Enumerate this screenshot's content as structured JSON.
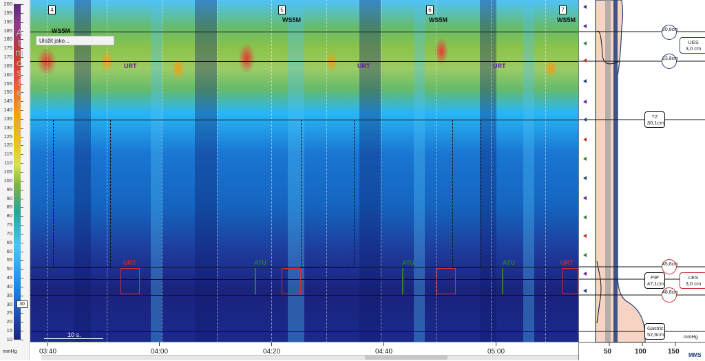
{
  "scale": {
    "unit": "mmHg",
    "ticks": [
      "200",
      "195",
      "190",
      "185",
      "180",
      "175",
      "170",
      "165",
      "160",
      "155",
      "150",
      "145",
      "140",
      "135",
      "130",
      "125",
      "120",
      "115",
      "110",
      "105",
      "100",
      "95",
      "90",
      "85",
      "80",
      "75",
      "70",
      "65",
      "60",
      "55",
      "50",
      "45",
      "40",
      "35",
      "30",
      "25",
      "20",
      "15",
      "10"
    ],
    "atmosphere_letters": [
      "A",
      "t",
      "m",
      "o",
      "s",
      "f",
      "é",
      "r",
      "i",
      "c",
      "k",
      "ý"
    ],
    "marker_value": "30"
  },
  "toolbar": {
    "save_label": "Uložit jako..."
  },
  "heatmap": {
    "ws_labels": [
      "WS5M",
      "WS5M",
      "WS5M",
      "WS5M"
    ],
    "event_markers": [
      "4",
      "5",
      "6",
      "7"
    ],
    "swallow_tags": [
      "URT",
      "URT",
      "URT",
      "URT",
      "ATU",
      "ATU",
      "ATU",
      "URT"
    ],
    "scale_label": "10 s."
  },
  "xaxis": {
    "labels": [
      "03:40",
      "04:00",
      "04:20",
      "04:40",
      "05:00"
    ]
  },
  "right_panel": {
    "ues_top": "20,8cm",
    "ues_bottom": "23,8cm",
    "ues_label": "UES",
    "ues_len": "3,0 cm",
    "tz_label": "TZ",
    "tz_val": "30,1cm",
    "les_top": "45,8cm",
    "pip_label": "PIP",
    "pip_val": "47,1cm",
    "les_label": "LES",
    "les_len": "3,0 cm",
    "les_bottom": "48,8cm",
    "gastric_label": "Gastric",
    "gastric_val": "52,6cm",
    "x_labels": [
      "50",
      "100",
      "150"
    ],
    "unit": "mmHg",
    "logo": "MMS"
  },
  "colors": {
    "ues_circle": "#2a3a8c",
    "les_circle": "#c62828",
    "profile_fill": "#f6d3c2",
    "profile_line": "#1f3f7a"
  }
}
